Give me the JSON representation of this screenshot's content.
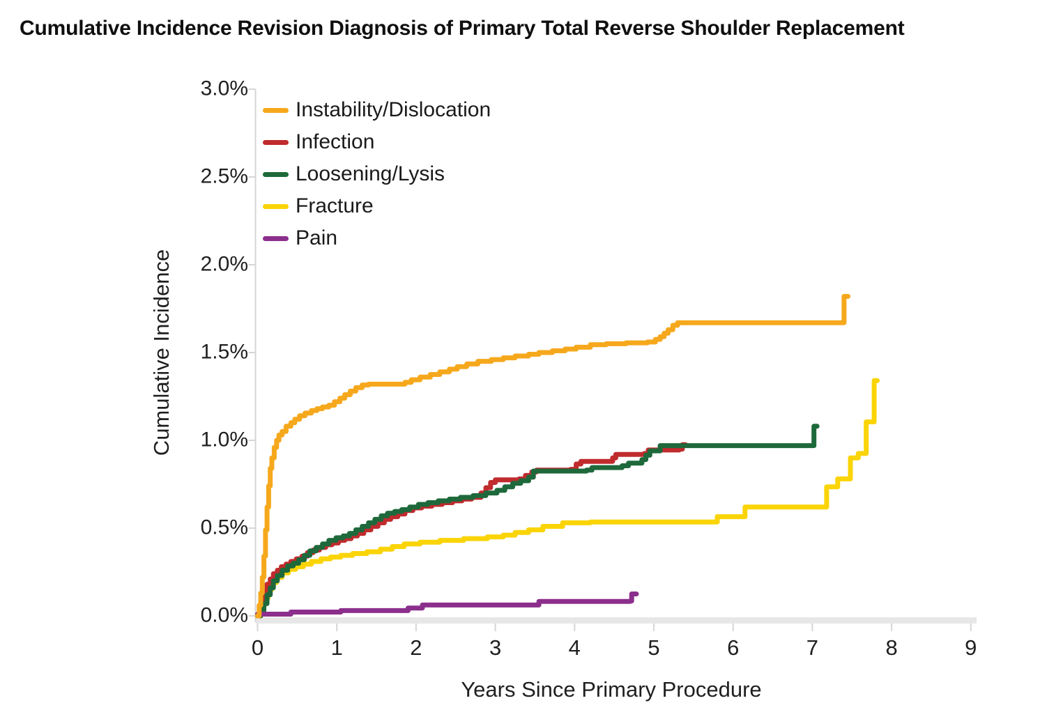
{
  "title": "Cumulative Incidence Revision Diagnosis of Primary Total Reverse Shoulder Replacement",
  "chart_data": {
    "type": "line",
    "subtype": "step-cumulative-incidence",
    "title": "Cumulative Incidence Revision Diagnosis of Primary Total Reverse Shoulder Replacement",
    "xlabel": "Years Since Primary Procedure",
    "ylabel": "Cumulative Incidence",
    "xlim": [
      0,
      9
    ],
    "ylim_percent": [
      0.0,
      3.0
    ],
    "grid": false,
    "legend_position": "inside-top-left",
    "x_ticks": [
      {
        "value": 0,
        "label": "0"
      },
      {
        "value": 1,
        "label": "1"
      },
      {
        "value": 2,
        "label": "2"
      },
      {
        "value": 3,
        "label": "3"
      },
      {
        "value": 4,
        "label": "4"
      },
      {
        "value": 5,
        "label": "5"
      },
      {
        "value": 6,
        "label": "6"
      },
      {
        "value": 7,
        "label": "7"
      },
      {
        "value": 8,
        "label": "8"
      },
      {
        "value": 9,
        "label": "9"
      }
    ],
    "y_ticks": [
      {
        "value": 0.0,
        "label": "0.0%"
      },
      {
        "value": 0.5,
        "label": "0.5%"
      },
      {
        "value": 1.0,
        "label": "1.0%"
      },
      {
        "value": 1.5,
        "label": "1.5%"
      },
      {
        "value": 2.0,
        "label": "2.0%"
      },
      {
        "value": 2.5,
        "label": "2.5%"
      },
      {
        "value": 3.0,
        "label": "3.0%"
      }
    ],
    "axis_color": "#d6d6d6",
    "baseline_color": "#e7e7e7",
    "series": [
      {
        "name": "Fracture",
        "color": "#fad406",
        "points": [
          [
            0,
            0
          ],
          [
            0.04,
            0.05
          ],
          [
            0.08,
            0.1
          ],
          [
            0.13,
            0.15
          ],
          [
            0.18,
            0.19
          ],
          [
            0.24,
            0.22
          ],
          [
            0.31,
            0.245
          ],
          [
            0.39,
            0.265
          ],
          [
            0.48,
            0.28
          ],
          [
            0.58,
            0.295
          ],
          [
            0.68,
            0.31
          ],
          [
            0.8,
            0.325
          ],
          [
            0.92,
            0.335
          ],
          [
            1.05,
            0.345
          ],
          [
            1.2,
            0.355
          ],
          [
            1.38,
            0.365
          ],
          [
            1.55,
            0.38
          ],
          [
            1.7,
            0.395
          ],
          [
            1.85,
            0.41
          ],
          [
            2.05,
            0.42
          ],
          [
            2.3,
            0.43
          ],
          [
            2.6,
            0.44
          ],
          [
            2.9,
            0.45
          ],
          [
            3.1,
            0.46
          ],
          [
            3.25,
            0.475
          ],
          [
            3.42,
            0.49
          ],
          [
            3.6,
            0.51
          ],
          [
            3.85,
            0.53
          ],
          [
            4.2,
            0.535
          ],
          [
            5.8,
            0.565
          ],
          [
            6.15,
            0.62
          ],
          [
            7.18,
            0.735
          ],
          [
            7.32,
            0.78
          ],
          [
            7.48,
            0.9
          ],
          [
            7.58,
            0.925
          ],
          [
            7.68,
            1.105
          ],
          [
            7.78,
            1.34
          ],
          [
            7.82,
            1.34
          ]
        ]
      },
      {
        "name": "Infection",
        "color": "#c02b2e",
        "points": [
          [
            0,
            0
          ],
          [
            0.03,
            0.04
          ],
          [
            0.06,
            0.09
          ],
          [
            0.09,
            0.14
          ],
          [
            0.12,
            0.18
          ],
          [
            0.16,
            0.21
          ],
          [
            0.2,
            0.24
          ],
          [
            0.25,
            0.26
          ],
          [
            0.3,
            0.28
          ],
          [
            0.36,
            0.295
          ],
          [
            0.42,
            0.31
          ],
          [
            0.49,
            0.325
          ],
          [
            0.56,
            0.34
          ],
          [
            0.63,
            0.36
          ],
          [
            0.7,
            0.375
          ],
          [
            0.78,
            0.39
          ],
          [
            0.86,
            0.405
          ],
          [
            0.94,
            0.415
          ],
          [
            1.02,
            0.43
          ],
          [
            1.1,
            0.44
          ],
          [
            1.18,
            0.455
          ],
          [
            1.26,
            0.47
          ],
          [
            1.34,
            0.49
          ],
          [
            1.43,
            0.51
          ],
          [
            1.52,
            0.53
          ],
          [
            1.6,
            0.55
          ],
          [
            1.68,
            0.565
          ],
          [
            1.77,
            0.58
          ],
          [
            1.86,
            0.6
          ],
          [
            1.96,
            0.615
          ],
          [
            2.07,
            0.625
          ],
          [
            2.2,
            0.635
          ],
          [
            2.33,
            0.645
          ],
          [
            2.46,
            0.655
          ],
          [
            2.58,
            0.665
          ],
          [
            2.7,
            0.675
          ],
          [
            2.82,
            0.7
          ],
          [
            2.88,
            0.73
          ],
          [
            2.94,
            0.76
          ],
          [
            3.0,
            0.775
          ],
          [
            3.3,
            0.78
          ],
          [
            3.38,
            0.8
          ],
          [
            3.46,
            0.82
          ],
          [
            3.52,
            0.83
          ],
          [
            3.95,
            0.835
          ],
          [
            4.02,
            0.865
          ],
          [
            4.08,
            0.88
          ],
          [
            4.48,
            0.9
          ],
          [
            4.52,
            0.92
          ],
          [
            4.88,
            0.925
          ],
          [
            4.93,
            0.945
          ],
          [
            5.32,
            0.95
          ],
          [
            5.36,
            0.975
          ],
          [
            5.4,
            0.975
          ]
        ]
      },
      {
        "name": "Loosening/Lysis",
        "color": "#1e693b",
        "points": [
          [
            0,
            0
          ],
          [
            0.04,
            0.03
          ],
          [
            0.08,
            0.07
          ],
          [
            0.12,
            0.12
          ],
          [
            0.16,
            0.16
          ],
          [
            0.2,
            0.2
          ],
          [
            0.25,
            0.23
          ],
          [
            0.31,
            0.26
          ],
          [
            0.38,
            0.285
          ],
          [
            0.45,
            0.3
          ],
          [
            0.52,
            0.32
          ],
          [
            0.59,
            0.345
          ],
          [
            0.66,
            0.37
          ],
          [
            0.74,
            0.39
          ],
          [
            0.82,
            0.41
          ],
          [
            0.9,
            0.43
          ],
          [
            0.99,
            0.445
          ],
          [
            1.08,
            0.455
          ],
          [
            1.16,
            0.47
          ],
          [
            1.24,
            0.49
          ],
          [
            1.32,
            0.51
          ],
          [
            1.4,
            0.53
          ],
          [
            1.48,
            0.55
          ],
          [
            1.56,
            0.57
          ],
          [
            1.64,
            0.585
          ],
          [
            1.73,
            0.595
          ],
          [
            1.82,
            0.605
          ],
          [
            1.92,
            0.62
          ],
          [
            2.03,
            0.635
          ],
          [
            2.15,
            0.645
          ],
          [
            2.28,
            0.655
          ],
          [
            2.42,
            0.665
          ],
          [
            2.56,
            0.675
          ],
          [
            2.72,
            0.685
          ],
          [
            2.88,
            0.7
          ],
          [
            3.02,
            0.715
          ],
          [
            3.12,
            0.735
          ],
          [
            3.22,
            0.755
          ],
          [
            3.32,
            0.77
          ],
          [
            3.42,
            0.79
          ],
          [
            3.48,
            0.825
          ],
          [
            4.15,
            0.83
          ],
          [
            4.22,
            0.845
          ],
          [
            4.6,
            0.855
          ],
          [
            4.68,
            0.87
          ],
          [
            4.85,
            0.89
          ],
          [
            4.9,
            0.915
          ],
          [
            4.95,
            0.94
          ],
          [
            5.08,
            0.97
          ],
          [
            7.0,
            0.97
          ],
          [
            7.02,
            1.08
          ],
          [
            7.06,
            1.08
          ]
        ]
      },
      {
        "name": "Pain",
        "color": "#8c2f8c",
        "points": [
          [
            0,
            0.01
          ],
          [
            0.42,
            0.022
          ],
          [
            1.05,
            0.03
          ],
          [
            1.9,
            0.045
          ],
          [
            2.08,
            0.062
          ],
          [
            3.55,
            0.082
          ],
          [
            4.7,
            0.085
          ],
          [
            4.72,
            0.125
          ],
          [
            4.78,
            0.125
          ]
        ]
      },
      {
        "name": "Instability/Dislocation",
        "color": "#f6a81c",
        "points": [
          [
            0,
            0
          ],
          [
            0.02,
            0.06
          ],
          [
            0.04,
            0.13
          ],
          [
            0.06,
            0.22
          ],
          [
            0.08,
            0.34
          ],
          [
            0.1,
            0.49
          ],
          [
            0.12,
            0.62
          ],
          [
            0.14,
            0.74
          ],
          [
            0.16,
            0.84
          ],
          [
            0.18,
            0.9
          ],
          [
            0.21,
            0.96
          ],
          [
            0.24,
            1.0
          ],
          [
            0.27,
            1.03
          ],
          [
            0.31,
            1.05
          ],
          [
            0.36,
            1.08
          ],
          [
            0.42,
            1.1
          ],
          [
            0.47,
            1.12
          ],
          [
            0.53,
            1.14
          ],
          [
            0.6,
            1.155
          ],
          [
            0.68,
            1.17
          ],
          [
            0.75,
            1.18
          ],
          [
            0.82,
            1.19
          ],
          [
            0.9,
            1.2
          ],
          [
            0.97,
            1.22
          ],
          [
            1.04,
            1.24
          ],
          [
            1.1,
            1.26
          ],
          [
            1.17,
            1.28
          ],
          [
            1.24,
            1.3
          ],
          [
            1.32,
            1.315
          ],
          [
            1.4,
            1.32
          ],
          [
            1.86,
            1.33
          ],
          [
            1.94,
            1.345
          ],
          [
            2.05,
            1.36
          ],
          [
            2.18,
            1.375
          ],
          [
            2.3,
            1.39
          ],
          [
            2.42,
            1.405
          ],
          [
            2.52,
            1.42
          ],
          [
            2.64,
            1.435
          ],
          [
            2.78,
            1.45
          ],
          [
            2.95,
            1.46
          ],
          [
            3.1,
            1.47
          ],
          [
            3.25,
            1.48
          ],
          [
            3.42,
            1.49
          ],
          [
            3.55,
            1.5
          ],
          [
            3.72,
            1.51
          ],
          [
            3.88,
            1.52
          ],
          [
            4.02,
            1.53
          ],
          [
            4.2,
            1.545
          ],
          [
            4.4,
            1.55
          ],
          [
            4.65,
            1.555
          ],
          [
            4.92,
            1.56
          ],
          [
            5.02,
            1.575
          ],
          [
            5.08,
            1.59
          ],
          [
            5.13,
            1.61
          ],
          [
            5.18,
            1.63
          ],
          [
            5.24,
            1.655
          ],
          [
            5.3,
            1.67
          ],
          [
            7.38,
            1.67
          ],
          [
            7.4,
            1.82
          ],
          [
            7.45,
            1.82
          ]
        ]
      }
    ],
    "legend_order": [
      "Instability/Dislocation",
      "Infection",
      "Loosening/Lysis",
      "Fracture",
      "Pain"
    ]
  }
}
